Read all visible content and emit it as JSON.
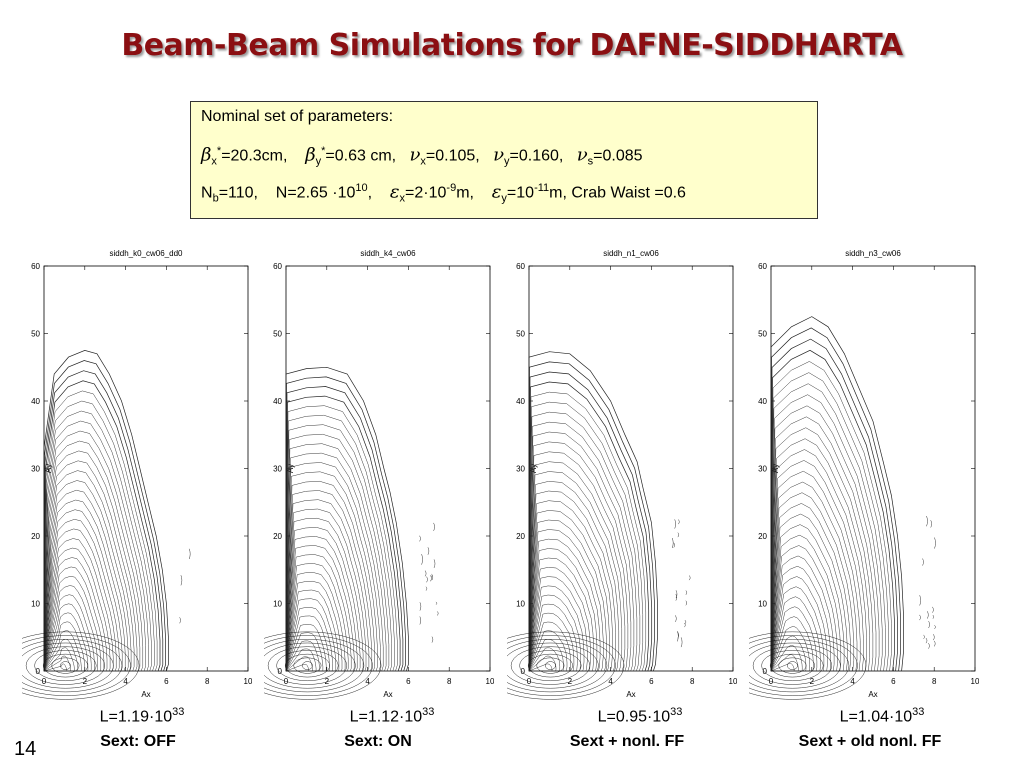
{
  "slide": {
    "title": "Beam-Beam Simulations for DAFNE-SIDDHARTA",
    "page_number": "14"
  },
  "params": {
    "heading": "Nominal set of parameters:",
    "beta_x_val": "=20.3cm,",
    "beta_y_val": "=0.63 cm,",
    "nu_x_val": "=0.105,",
    "nu_y_val": "=0.160,",
    "nu_s_val": "=0.085",
    "nb_val": "=110,",
    "n_val": "N=2.65 ·10",
    "n_exp": "10",
    "eps_x_val": "=2·10",
    "eps_x_exp": "-9",
    "eps_y_val": "=10",
    "eps_y_exp": "-11",
    "crab": "m,  Crab Waist =0.6"
  },
  "chart_data": [
    {
      "type": "contour",
      "title": "siddh_k0_cw06_dd0",
      "xlabel": "Ax",
      "ylabel": "Ay",
      "xlim": [
        0,
        10
      ],
      "ylim": [
        0,
        60
      ],
      "xticks": [
        0,
        2,
        4,
        6,
        8,
        10
      ],
      "yticks": [
        0,
        10,
        20,
        30,
        40,
        50,
        60
      ],
      "outer_contour": [
        [
          0,
          33
        ],
        [
          0.5,
          44
        ],
        [
          1.2,
          46.5
        ],
        [
          2,
          47.5
        ],
        [
          2.6,
          47
        ],
        [
          3.2,
          44
        ],
        [
          3.8,
          40
        ],
        [
          4.3,
          35
        ],
        [
          4.7,
          30
        ],
        [
          5.1,
          25
        ],
        [
          5.5,
          20
        ],
        [
          5.8,
          15
        ],
        [
          6,
          10
        ],
        [
          6.1,
          5
        ],
        [
          6.1,
          1
        ],
        [
          6,
          0
        ]
      ],
      "luminosity": "L=1.19·10",
      "luminosity_exp": "33",
      "label": "Sext:  OFF"
    },
    {
      "type": "contour",
      "title": "siddh_k4_cw06",
      "xlabel": "Ax",
      "ylabel": "Ay",
      "xlim": [
        0,
        10
      ],
      "ylim": [
        0,
        60
      ],
      "xticks": [
        0,
        2,
        4,
        6,
        8,
        10
      ],
      "yticks": [
        0,
        10,
        20,
        30,
        40,
        50,
        60
      ],
      "outer_contour": [
        [
          0,
          44
        ],
        [
          1,
          44.8
        ],
        [
          2,
          45
        ],
        [
          3,
          44
        ],
        [
          3.8,
          40
        ],
        [
          4.4,
          35
        ],
        [
          4.8,
          30
        ],
        [
          5.1,
          26.5
        ],
        [
          5.4,
          22
        ],
        [
          5.7,
          16
        ],
        [
          5.9,
          10
        ],
        [
          6,
          5
        ],
        [
          6,
          1
        ],
        [
          5.9,
          0
        ]
      ],
      "luminosity": "L=1.12·10",
      "luminosity_exp": "33",
      "label": "Sext:   ON"
    },
    {
      "type": "contour",
      "title": "siddh_n1_cw06",
      "xlabel": "Ax",
      "ylabel": "Ay",
      "xlim": [
        0,
        10
      ],
      "ylim": [
        0,
        60
      ],
      "xticks": [
        0,
        2,
        4,
        6,
        8,
        10
      ],
      "yticks": [
        0,
        10,
        20,
        30,
        40,
        50,
        60
      ],
      "outer_contour": [
        [
          0,
          46.5
        ],
        [
          1,
          47.3
        ],
        [
          2,
          47
        ],
        [
          3,
          44.5
        ],
        [
          4,
          40
        ],
        [
          4.7,
          35
        ],
        [
          5.3,
          31
        ],
        [
          5.6,
          27
        ],
        [
          6,
          22
        ],
        [
          6.2,
          16
        ],
        [
          6.3,
          10
        ],
        [
          6.3,
          5
        ],
        [
          6.2,
          1
        ],
        [
          6.1,
          0
        ]
      ],
      "luminosity": "L=0.95·10",
      "luminosity_exp": "33",
      "label": "Sext + nonl. FF"
    },
    {
      "type": "contour",
      "title": "siddh_n3_cw06",
      "xlabel": "Ax",
      "ylabel": "Ay",
      "xlim": [
        0,
        10
      ],
      "ylim": [
        0,
        60
      ],
      "xticks": [
        0,
        2,
        4,
        6,
        8,
        10
      ],
      "yticks": [
        0,
        10,
        20,
        30,
        40,
        50,
        60
      ],
      "outer_contour": [
        [
          0,
          48
        ],
        [
          1,
          51
        ],
        [
          2,
          52.5
        ],
        [
          2.8,
          51
        ],
        [
          3.6,
          47
        ],
        [
          4.3,
          42
        ],
        [
          5,
          37
        ],
        [
          5.5,
          31
        ],
        [
          5.9,
          26
        ],
        [
          6.2,
          20
        ],
        [
          6.4,
          14
        ],
        [
          6.5,
          8
        ],
        [
          6.5,
          3
        ],
        [
          6.4,
          0
        ]
      ],
      "luminosity": "L=1.04·10",
      "luminosity_exp": "33",
      "label": "Sext + old nonl. FF"
    }
  ]
}
